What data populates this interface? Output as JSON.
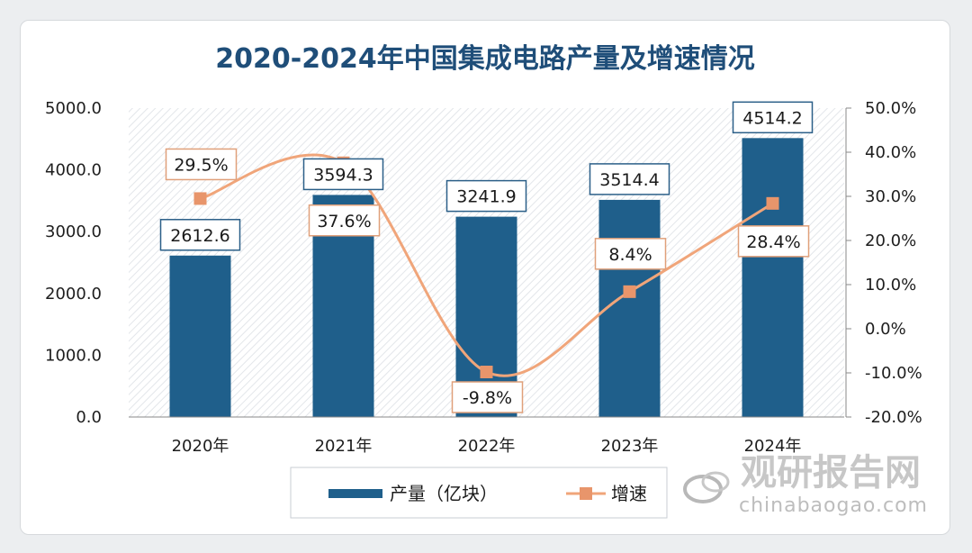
{
  "chart_data": {
    "type": "bar",
    "title": "2020-2024年中国集成电路产量及增速情况",
    "categories": [
      "2020年",
      "2021年",
      "2022年",
      "2023年",
      "2024年"
    ],
    "series": [
      {
        "name": "产量（亿块）",
        "type": "bar",
        "axis": "left",
        "values": [
          2612.6,
          3594.3,
          3241.9,
          3514.4,
          4514.2
        ],
        "labels": [
          "2612.6",
          "3594.3",
          "3241.9",
          "3514.4",
          "4514.2"
        ]
      },
      {
        "name": "增速",
        "type": "line",
        "axis": "right",
        "values": [
          29.5,
          37.6,
          -9.8,
          8.4,
          28.4
        ],
        "labels": [
          "29.5%",
          "37.6%",
          "-9.8%",
          "8.4%",
          "28.4%"
        ]
      }
    ],
    "y_left": {
      "min": 0,
      "max": 5000,
      "ticks": [
        "0.0",
        "1000.0",
        "2000.0",
        "3000.0",
        "4000.0",
        "5000.0"
      ]
    },
    "y_right": {
      "min": -20,
      "max": 50,
      "ticks": [
        "-20.0%",
        "-10.0%",
        "0.0%",
        "10.0%",
        "20.0%",
        "30.0%",
        "40.0%",
        "50.0%"
      ]
    },
    "legend_position": "bottom",
    "colors": {
      "bar": "#1f5f8b",
      "line": "#f0a57a",
      "marker": "#e8956b",
      "title": "#1f4e79"
    }
  },
  "watermark": {
    "name": "观研报告网",
    "url": "chinabaogao.com"
  }
}
